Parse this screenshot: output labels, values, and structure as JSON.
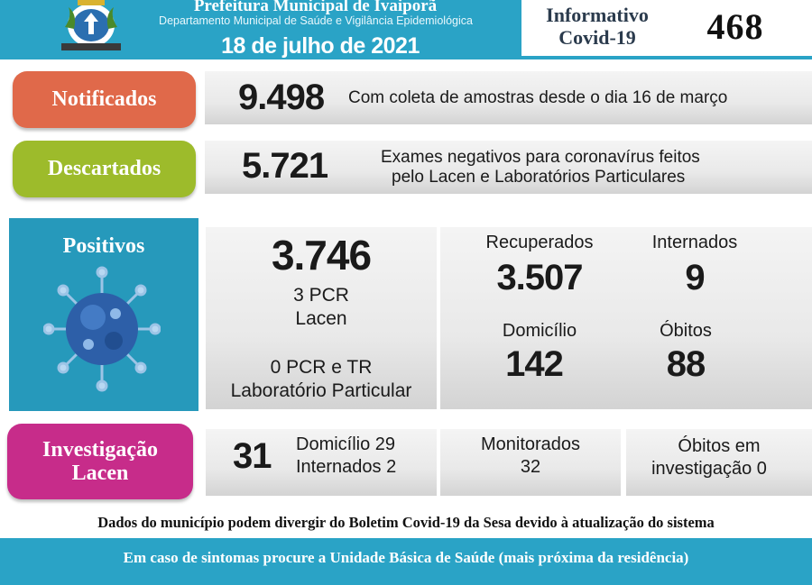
{
  "header": {
    "title": "Prefeitura Municipal de Ivaiporã",
    "department": "Departamento Municipal de Saúde e Vigilância Epidemiológica",
    "date": "18 de julho de 2021",
    "informativo_line1": "Informativo",
    "informativo_line2": "Covid-19",
    "edition": "468",
    "accent_color": "#2aa3c6"
  },
  "notificados": {
    "label": "Notificados",
    "value": "9.498",
    "description": "Com coleta de amostras desde o dia 16 de março",
    "color": "#e0694a"
  },
  "descartados": {
    "label": "Descartados",
    "value": "5.721",
    "description_line1": "Exames negativos para coronavírus feitos",
    "description_line2": "pelo Lacen e Laboratórios Particulares",
    "color": "#9dbb2b"
  },
  "positivos": {
    "label": "Positivos",
    "value": "3.746",
    "lacen_count": "3 PCR",
    "lacen_label": "Lacen",
    "particular_count": "0 PCR e TR",
    "particular_label": "Laboratório Particular",
    "icon": "virus-icon",
    "color": "#2699bb",
    "recuperados_label": "Recuperados",
    "recuperados_value": "3.507",
    "internados_label": "Internados",
    "internados_value": "9",
    "domicilio_label": "Domicílio",
    "domicilio_value": "142",
    "obitos_label": "Óbitos",
    "obitos_value": "88"
  },
  "investigacao": {
    "label_line1": "Investigação",
    "label_line2": "Lacen",
    "value": "31",
    "domicilio": "Domicílio 29",
    "internados": "Internados 2",
    "monitorados_label": "Monitorados",
    "monitorados_value": "32",
    "obitos_line1": "Óbitos em",
    "obitos_line2": "investigação 0",
    "color": "#c72c8a"
  },
  "disclaimer": "Dados do município podem divergir do Boletim Covid-19 da Sesa devido à atualização do sistema",
  "footer": "Em caso de sintomas procure a Unidade Básica de Saúde (mais próxima da residência)"
}
